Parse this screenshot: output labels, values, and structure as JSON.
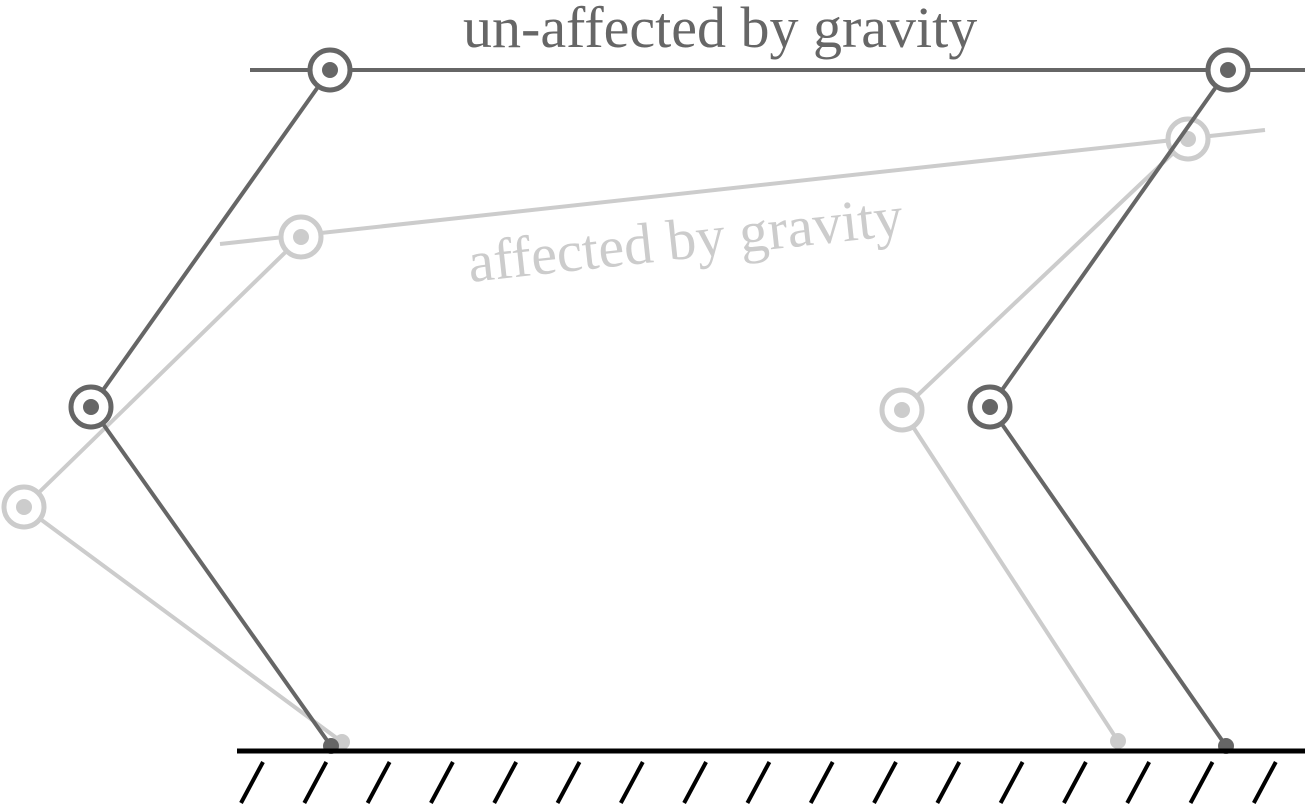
{
  "labels": {
    "unaffected": "un-affected by gravity",
    "affected": "affected by gravity"
  },
  "colors": {
    "unaffected": "#666666",
    "affected": "#cccccc",
    "ground": "#000000",
    "joint_fill": "#ffffff"
  }
}
